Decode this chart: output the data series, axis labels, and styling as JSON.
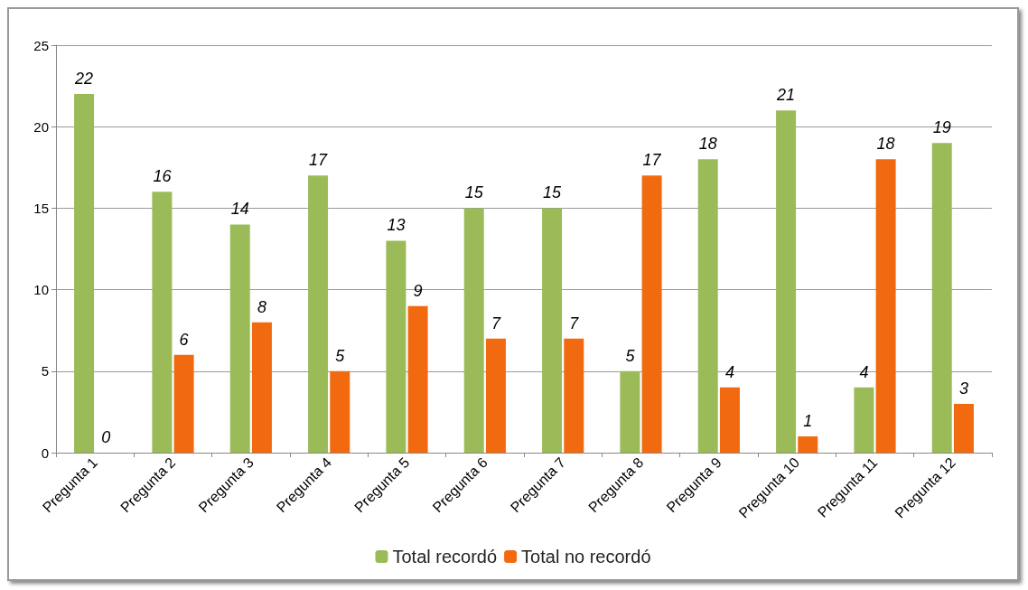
{
  "chart_data": {
    "type": "bar",
    "categories": [
      "Pregunta 1",
      "Pregunta 2",
      "Pregunta 3",
      "Pregunta 4",
      "Pregunta 5",
      "Pregunta 6",
      "Pregunta 7",
      "Pregunta 8",
      "Pregunta 9",
      "Pregunta 10",
      "Pregunta 11",
      "Pregunta 12"
    ],
    "series": [
      {
        "name": "Total recordó",
        "color": "#9bbb59",
        "values": [
          22,
          16,
          14,
          17,
          13,
          15,
          15,
          5,
          18,
          21,
          4,
          19
        ]
      },
      {
        "name": "Total no recordó",
        "color": "#f26a0f",
        "values": [
          0,
          6,
          8,
          5,
          9,
          7,
          7,
          17,
          4,
          1,
          18,
          3
        ]
      }
    ],
    "ylim": [
      0,
      25
    ],
    "yticks": [
      0,
      5,
      10,
      15,
      20,
      25
    ],
    "grid": "y",
    "legend": "bottom",
    "data_labels": true
  }
}
